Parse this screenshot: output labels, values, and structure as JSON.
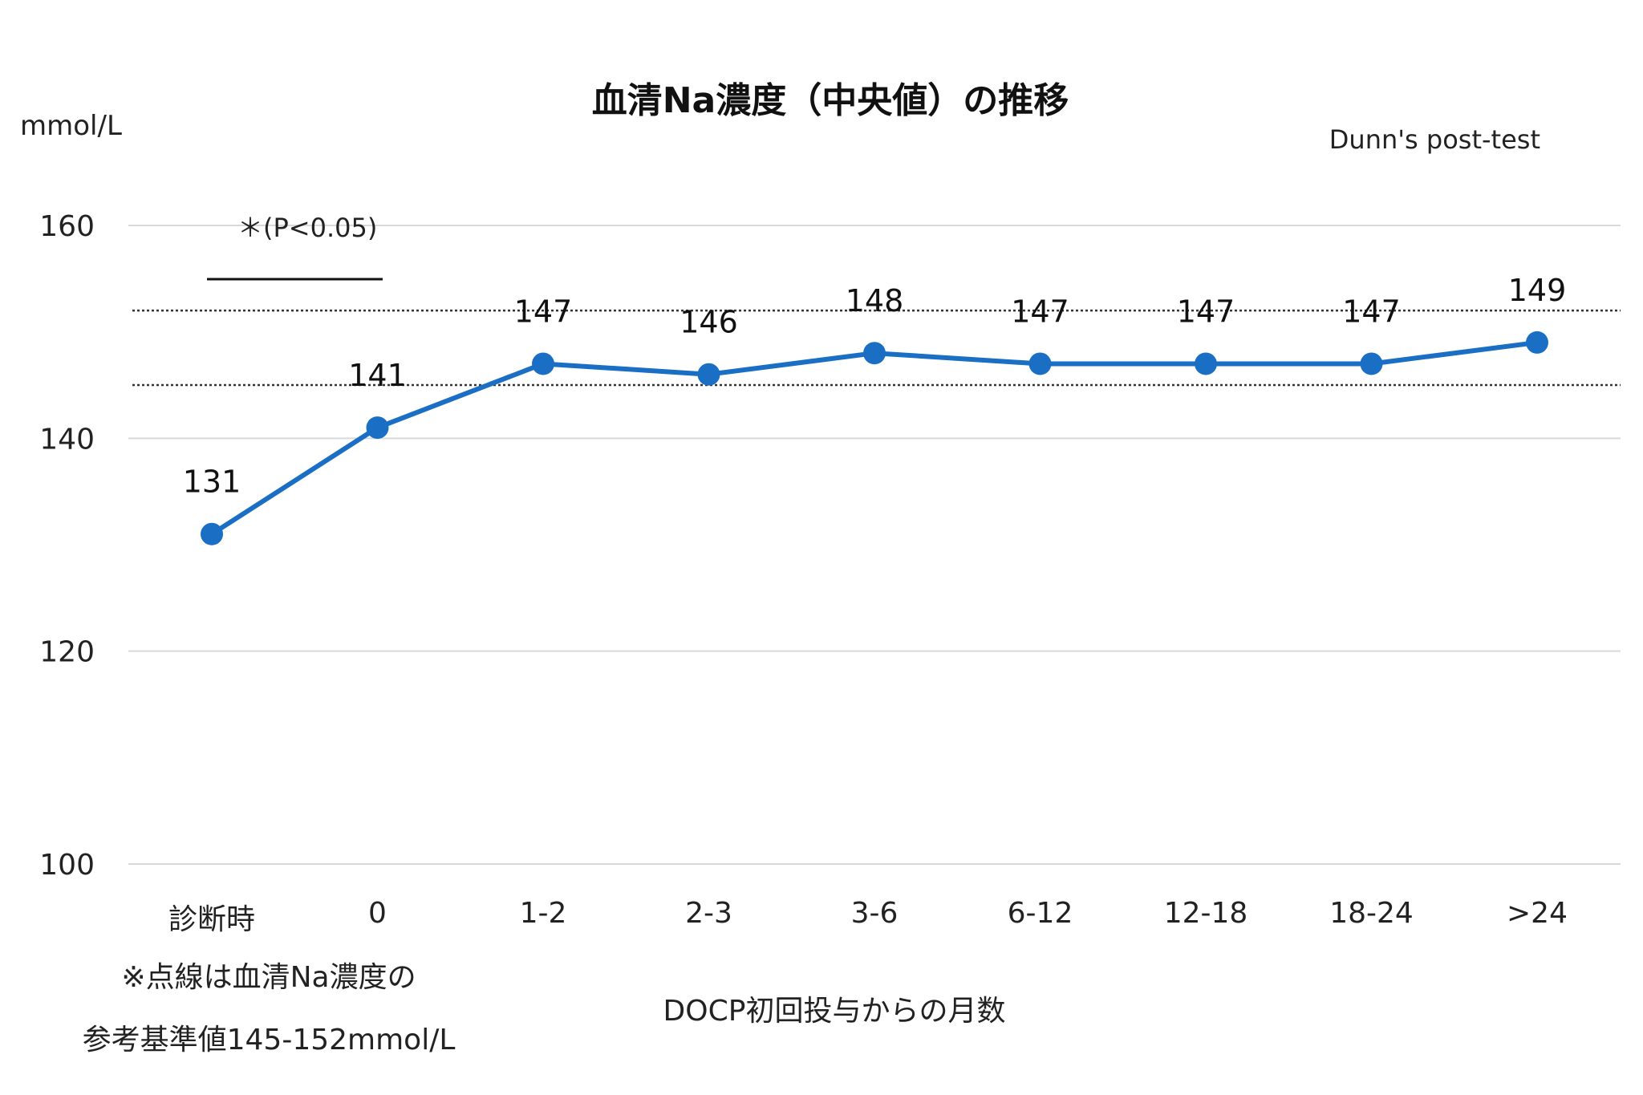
{
  "chart_data": {
    "type": "line",
    "title": "血清Na濃度（中央値）の推移",
    "ylabel": "mmol/L",
    "xlabel": "DOCP初回投与からの月数",
    "ylim": [
      100,
      160
    ],
    "yticks": [
      100,
      120,
      140,
      160
    ],
    "categories": [
      "診断時",
      "0",
      "1-2",
      "2-3",
      "3-6",
      "6-12",
      "12-18",
      "18-24",
      ">24"
    ],
    "series": [
      {
        "name": "血清Na濃度（中央値）",
        "values": [
          131,
          141,
          147,
          146,
          148,
          147,
          147,
          147,
          149
        ],
        "color": "#1a6fc4"
      }
    ],
    "data_labels": [
      "131",
      "141",
      "147",
      "146",
      "148",
      "147",
      "147",
      "147",
      "149"
    ],
    "reference_range": [
      145,
      152
    ],
    "grid": true,
    "significance": {
      "text": "＊(P<0.05)",
      "from_category": "診断時",
      "to_category": "0"
    },
    "test_note": "Dunn's post-test",
    "footnote_line1": "※点線は血清Na濃度の",
    "footnote_line2": "参考基準値145-152mmol/L"
  },
  "colors": {
    "line": "#1a6fc4",
    "grid": "#d9d9d9",
    "reference": "#333333",
    "text": "#222222"
  }
}
